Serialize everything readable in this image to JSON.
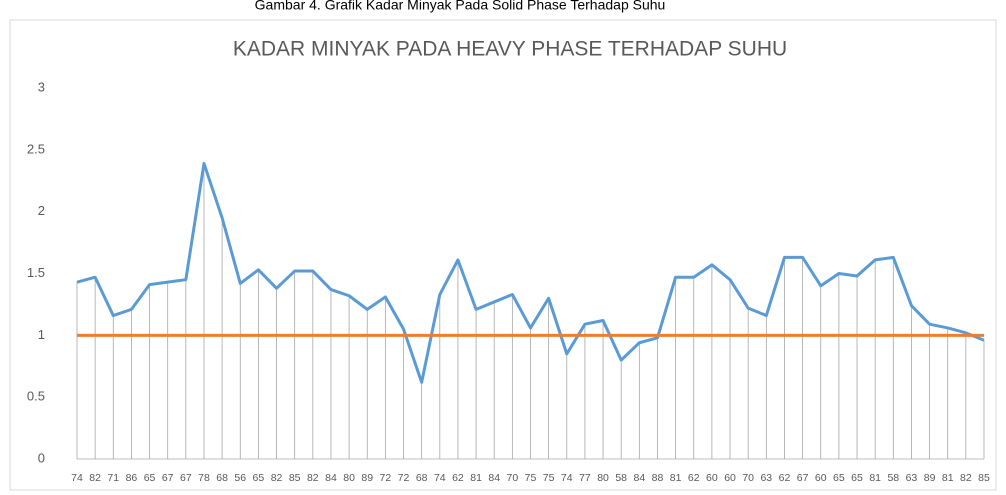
{
  "caption": "Gambar 4. Grafik Kadar Minyak Pada Solid Phase Terhadap Suhu",
  "chart_data": {
    "type": "line",
    "title": "KADAR MINYAK PADA HEAVY PHASE TERHADAP SUHU",
    "categories": [
      "74",
      "82",
      "71",
      "86",
      "65",
      "67",
      "67",
      "78",
      "68",
      "56",
      "65",
      "82",
      "85",
      "82",
      "84",
      "80",
      "89",
      "72",
      "72",
      "68",
      "74",
      "62",
      "81",
      "84",
      "70",
      "75",
      "75",
      "74",
      "77",
      "80",
      "58",
      "84",
      "88",
      "81",
      "62",
      "60",
      "60",
      "70",
      "63",
      "62",
      "67",
      "60",
      "65",
      "65",
      "81",
      "58",
      "63",
      "89",
      "81",
      "82",
      "85"
    ],
    "series": [
      {
        "color": "#5b9bd5",
        "values": [
          1.43,
          1.47,
          1.16,
          1.21,
          1.41,
          1.43,
          1.45,
          2.39,
          1.95,
          1.42,
          1.53,
          1.38,
          1.52,
          1.52,
          1.37,
          1.32,
          1.21,
          1.31,
          1.05,
          0.62,
          1.33,
          1.61,
          1.21,
          1.27,
          1.33,
          1.06,
          1.3,
          0.85,
          1.09,
          1.12,
          0.8,
          0.94,
          0.98,
          1.47,
          1.47,
          1.57,
          1.45,
          1.22,
          1.16,
          1.63,
          1.63,
          1.4,
          1.5,
          1.48,
          1.61,
          1.63,
          1.24,
          1.09,
          1.06,
          1.02,
          0.96
        ]
      },
      {
        "color": "#ed7d31",
        "values": [
          1,
          1,
          1,
          1,
          1,
          1,
          1,
          1,
          1,
          1,
          1,
          1,
          1,
          1,
          1,
          1,
          1,
          1,
          1,
          1,
          1,
          1,
          1,
          1,
          1,
          1,
          1,
          1,
          1,
          1,
          1,
          1,
          1,
          1,
          1,
          1,
          1,
          1,
          1,
          1,
          1,
          1,
          1,
          1,
          1,
          1,
          1,
          1,
          1,
          1,
          1
        ]
      }
    ],
    "ylim": [
      0,
      3
    ],
    "yticks": [
      0,
      0.5,
      1,
      1.5,
      2,
      2.5,
      3
    ],
    "drop_lines": true
  }
}
